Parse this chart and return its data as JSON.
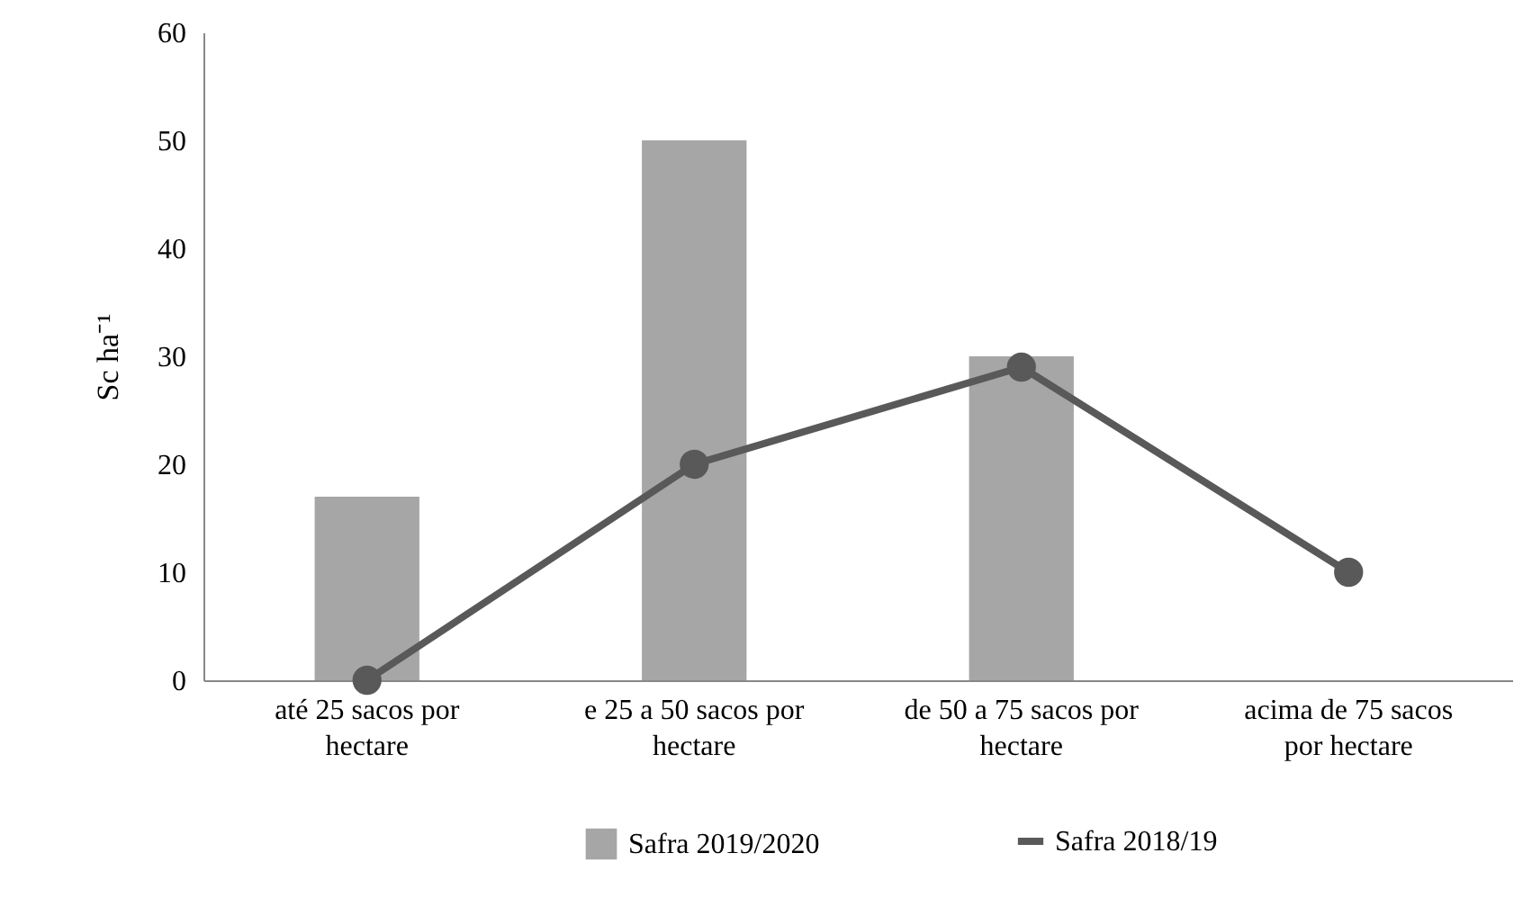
{
  "chart_data": {
    "type": "bar",
    "ylabel": "Sc ha⁻¹",
    "categories": [
      "até 25 sacos por hectare",
      "e 25 a 50 sacos por hectare",
      "de 50 a 75 sacos por hectare",
      "acima de 75 sacos por hectare"
    ],
    "series": [
      {
        "name": "Safra 2019/2020",
        "color": "#a6a6a6",
        "values": [
          17,
          50,
          30,
          null
        ]
      },
      {
        "name": "Safra 2018/19",
        "type": "line",
        "color": "#595959",
        "values": [
          0,
          20,
          29,
          10
        ],
        "marker": "circle",
        "line_style": "solid"
      }
    ],
    "ylim": [
      0,
      60
    ],
    "yticks": [
      0,
      10,
      20,
      30,
      40,
      50,
      60
    ],
    "grid": false,
    "legend": "bottom"
  }
}
